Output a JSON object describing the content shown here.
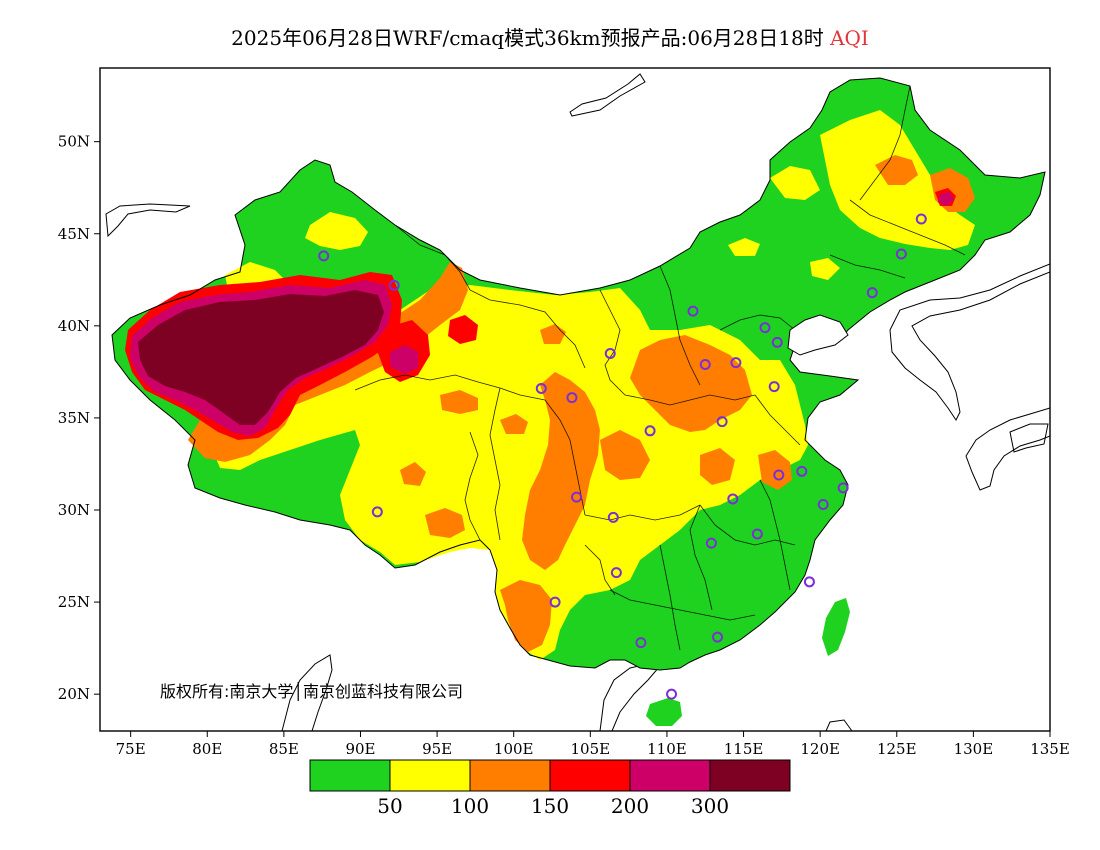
{
  "title": {
    "main": "2025年06月28日WRF/cmaq模式36km预报产品:06月28日18时",
    "variable": "AQI",
    "variable_color": "#e2363b"
  },
  "map": {
    "lon_range": [
      73,
      135
    ],
    "lat_range": [
      18,
      54
    ],
    "x_ticks": [
      {
        "lon": 75,
        "label": "75E"
      },
      {
        "lon": 80,
        "label": "80E"
      },
      {
        "lon": 85,
        "label": "85E"
      },
      {
        "lon": 90,
        "label": "90E"
      },
      {
        "lon": 95,
        "label": "95E"
      },
      {
        "lon": 100,
        "label": "100E"
      },
      {
        "lon": 105,
        "label": "105E"
      },
      {
        "lon": 110,
        "label": "110E"
      },
      {
        "lon": 115,
        "label": "115E"
      },
      {
        "lon": 120,
        "label": "120E"
      },
      {
        "lon": 125,
        "label": "125E"
      },
      {
        "lon": 130,
        "label": "130E"
      },
      {
        "lon": 135,
        "label": "135E"
      }
    ],
    "y_ticks": [
      {
        "lat": 20,
        "label": "20N"
      },
      {
        "lat": 25,
        "label": "25N"
      },
      {
        "lat": 30,
        "label": "30N"
      },
      {
        "lat": 35,
        "label": "35N"
      },
      {
        "lat": 40,
        "label": "40N"
      },
      {
        "lat": 45,
        "label": "45N"
      },
      {
        "lat": 50,
        "label": "50N"
      }
    ],
    "copyright": "版权所有:南京大学│南京创蓝科技有限公司",
    "cities": [
      {
        "lon": 87.6,
        "lat": 43.8
      },
      {
        "lon": 91.1,
        "lat": 29.9
      },
      {
        "lon": 101.8,
        "lat": 36.6
      },
      {
        "lon": 103.8,
        "lat": 36.1
      },
      {
        "lon": 106.3,
        "lat": 38.5
      },
      {
        "lon": 111.7,
        "lat": 40.8
      },
      {
        "lon": 112.5,
        "lat": 37.9
      },
      {
        "lon": 114.5,
        "lat": 38.0
      },
      {
        "lon": 116.4,
        "lat": 39.9
      },
      {
        "lon": 117.2,
        "lat": 39.1
      },
      {
        "lon": 117.0,
        "lat": 36.7
      },
      {
        "lon": 113.6,
        "lat": 34.8
      },
      {
        "lon": 108.9,
        "lat": 34.3
      },
      {
        "lon": 104.1,
        "lat": 30.7
      },
      {
        "lon": 106.5,
        "lat": 29.6
      },
      {
        "lon": 106.7,
        "lat": 26.6
      },
      {
        "lon": 102.7,
        "lat": 25.0
      },
      {
        "lon": 108.3,
        "lat": 22.8
      },
      {
        "lon": 113.3,
        "lat": 23.1
      },
      {
        "lon": 110.3,
        "lat": 20.0
      },
      {
        "lon": 112.9,
        "lat": 28.2
      },
      {
        "lon": 114.3,
        "lat": 30.6
      },
      {
        "lon": 115.9,
        "lat": 28.7
      },
      {
        "lon": 117.3,
        "lat": 31.9
      },
      {
        "lon": 118.8,
        "lat": 32.1
      },
      {
        "lon": 120.2,
        "lat": 30.3
      },
      {
        "lon": 121.5,
        "lat": 31.2
      },
      {
        "lon": 119.3,
        "lat": 26.1
      },
      {
        "lon": 123.4,
        "lat": 41.8
      },
      {
        "lon": 125.3,
        "lat": 43.9
      },
      {
        "lon": 126.6,
        "lat": 45.8
      },
      {
        "lon": 92.2,
        "lat": 42.2
      }
    ],
    "city_marker_color": "#7b2fd6"
  },
  "legend": {
    "colors": [
      "#1fd21f",
      "#ffff00",
      "#ff7e00",
      "#ff0000",
      "#cc0066",
      "#7e0023"
    ],
    "labels": [
      "50",
      "100",
      "150",
      "200",
      "300"
    ]
  }
}
